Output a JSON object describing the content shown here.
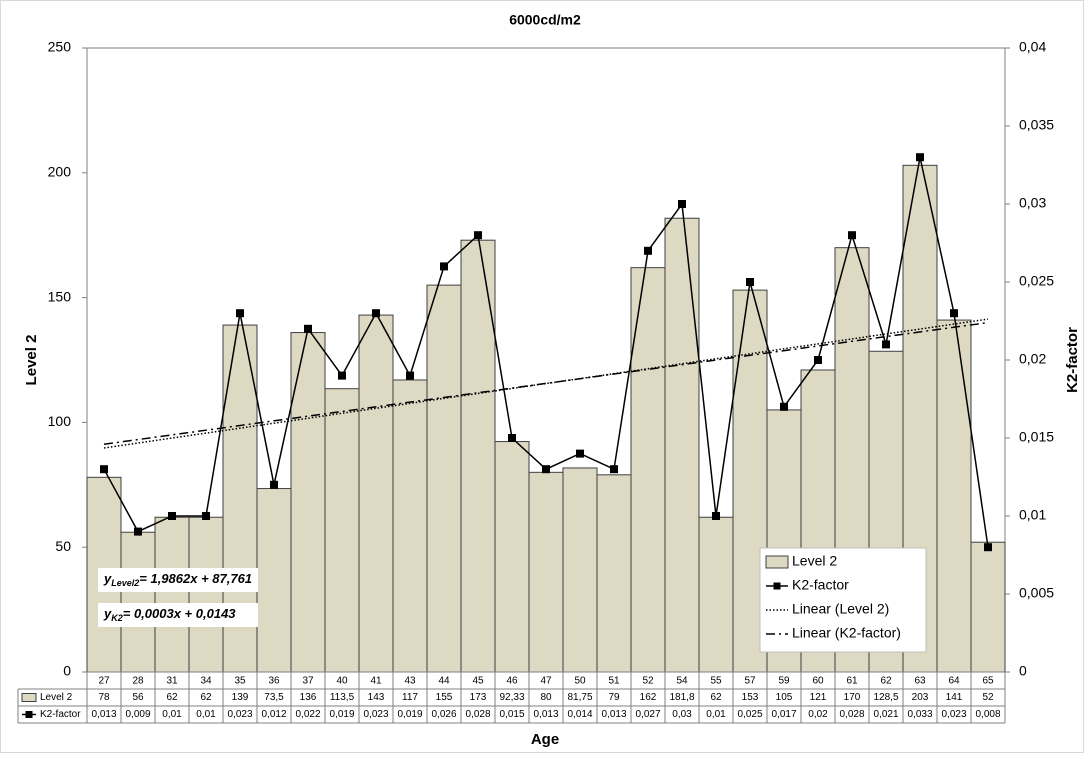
{
  "chart_data": {
    "type": "bar",
    "title": "6000cd/m2",
    "x_label": "Age",
    "y_label": "Level 2",
    "y2_label": "K2-factor",
    "categories": [
      27,
      28,
      31,
      34,
      35,
      36,
      37,
      40,
      41,
      43,
      44,
      45,
      46,
      47,
      50,
      51,
      52,
      54,
      55,
      57,
      59,
      60,
      61,
      62,
      63,
      64,
      65
    ],
    "series": [
      {
        "name": "Level 2",
        "type": "bar",
        "color": "#ddd9c3",
        "values": [
          78,
          56,
          62,
          62,
          139,
          73.5,
          136,
          113.5,
          143,
          117,
          155,
          173,
          92.33,
          80,
          81.75,
          79,
          162,
          181.8,
          62,
          153,
          105,
          121,
          170,
          128.5,
          203,
          141,
          52
        ],
        "value_labels": [
          "78",
          "56",
          "62",
          "62",
          "139",
          "73,5",
          "136",
          "113,5",
          "143",
          "117",
          "155",
          "173",
          "92,33",
          "80",
          "81,75",
          "79",
          "162",
          "181,8",
          "62",
          "153",
          "105",
          "121",
          "170",
          "128,5",
          "203",
          "141",
          "52"
        ]
      },
      {
        "name": "K2-factor",
        "type": "line",
        "axis": "y2",
        "color": "#000000",
        "values": [
          0.013,
          0.009,
          0.01,
          0.01,
          0.023,
          0.012,
          0.022,
          0.019,
          0.023,
          0.019,
          0.026,
          0.028,
          0.015,
          0.013,
          0.014,
          0.013,
          0.027,
          0.03,
          0.01,
          0.025,
          0.017,
          0.02,
          0.028,
          0.021,
          0.033,
          0.023,
          0.008
        ],
        "value_labels": [
          "0,013",
          "0,009",
          "0,01",
          "0,01",
          "0,023",
          "0,012",
          "0,022",
          "0,019",
          "0,023",
          "0,019",
          "0,026",
          "0,028",
          "0,015",
          "0,013",
          "0,014",
          "0,013",
          "0,027",
          "0,03",
          "0,01",
          "0,025",
          "0,017",
          "0,02",
          "0,028",
          "0,021",
          "0,033",
          "0,023",
          "0,008"
        ]
      },
      {
        "name": "Linear (Level 2)",
        "type": "trendline",
        "color": "#000000",
        "dash": "1.5 2",
        "slope": 1.9862,
        "intercept": 87.761
      },
      {
        "name": "Linear (K2-factor)",
        "type": "trendline",
        "axis": "y2",
        "color": "#000000",
        "dash": "9 4 2 4",
        "slope": 0.0003,
        "intercept": 0.0143
      }
    ],
    "annotations": [
      {
        "prefix": "y",
        "subscript": "Level2",
        "text": "= 1,9862x + 87,761"
      },
      {
        "prefix": "y",
        "subscript": "K2",
        "text": "= 0,0003x + 0,0143"
      }
    ],
    "ylim": [
      0,
      250
    ],
    "yticks": [
      0,
      50,
      100,
      150,
      200,
      250
    ],
    "y2lim": [
      0,
      0.04
    ],
    "y2ticks": [
      0,
      {
        "value": 0.005,
        "label": "0,005"
      },
      {
        "value": 0.01,
        "label": "0,01"
      },
      {
        "value": 0.015,
        "label": "0,015"
      },
      {
        "value": 0.02,
        "label": "0,02"
      },
      {
        "value": 0.025,
        "label": "0,025"
      },
      {
        "value": 0.03,
        "label": "0,03"
      },
      {
        "value": 0.035,
        "label": "0,035"
      },
      {
        "value": 0.04,
        "label": "0,04"
      }
    ],
    "legend": "bottom-right",
    "data_table": true
  }
}
